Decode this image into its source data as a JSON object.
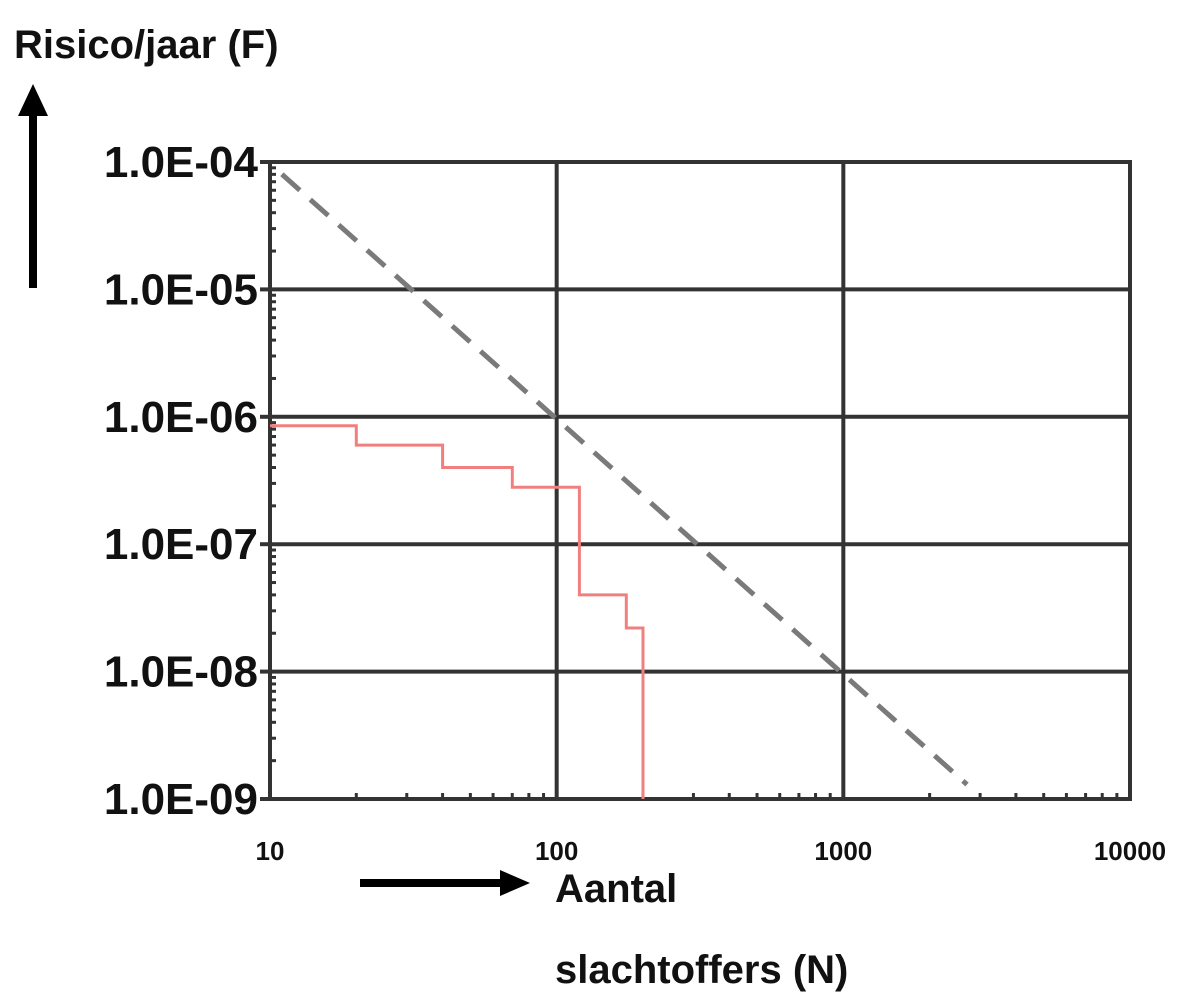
{
  "chart_data": {
    "type": "line",
    "title": "",
    "ylabel": "Risico/jaar (F)",
    "xlabel_line1": "Aantal",
    "xlabel_line2": "slachtoffers (N)",
    "x_scale": "log",
    "y_scale": "log",
    "xlim": [
      10,
      10000
    ],
    "ylim": [
      1e-09,
      0.0001
    ],
    "grid": true,
    "x_ticks": [
      {
        "value": 10,
        "label": "10"
      },
      {
        "value": 100,
        "label": "100"
      },
      {
        "value": 1000,
        "label": "1000"
      },
      {
        "value": 10000,
        "label": "10000"
      }
    ],
    "y_ticks": [
      {
        "value": 0.0001,
        "label": "1.0E-04"
      },
      {
        "value": 1e-05,
        "label": "1.0E-05"
      },
      {
        "value": 1e-06,
        "label": "1.0E-06"
      },
      {
        "value": 1e-07,
        "label": "1.0E-07"
      },
      {
        "value": 1e-08,
        "label": "1.0E-08"
      },
      {
        "value": 1e-09,
        "label": "1.0E-09"
      }
    ],
    "series": [
      {
        "style": "dashed",
        "color": "#7a7a7a",
        "x": [
          11,
          2700
        ],
        "y": [
          8e-05,
          1.3e-09
        ]
      },
      {
        "style": "step",
        "color": "#f08080",
        "x": [
          10,
          20,
          20,
          40,
          40,
          70,
          70,
          120,
          120,
          175,
          175,
          200,
          200
        ],
        "y": [
          8.5e-07,
          8.5e-07,
          6e-07,
          6e-07,
          4e-07,
          4e-07,
          2.8e-07,
          2.8e-07,
          4e-08,
          4e-08,
          2.2e-08,
          2.2e-08,
          1e-09
        ]
      }
    ]
  }
}
